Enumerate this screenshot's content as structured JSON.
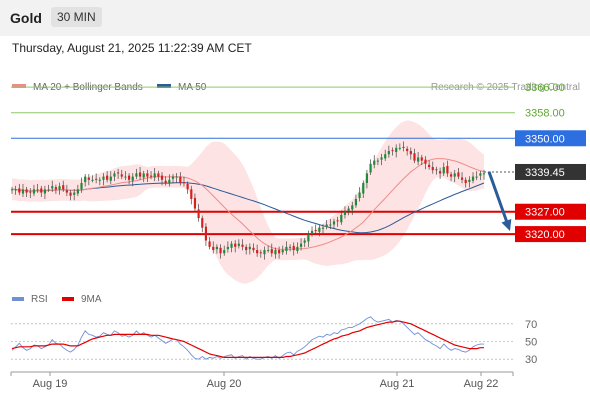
{
  "header": {
    "instrument": "Gold",
    "timeframe": "30 MIN"
  },
  "timestamp": "Thursday, August 21, 2025 11:22:39 AM CET",
  "chart_data": {
    "type": "candlestick",
    "legend": [
      {
        "label": "MA 20 + Bollinger Bands",
        "color": "#f08a8a"
      },
      {
        "label": "MA 50",
        "color": "#2a5b9a"
      }
    ],
    "credit": "Research © 2025 Trading Central",
    "x_ticks": [
      "Aug 19",
      "Aug 20",
      "Aug 21",
      "Aug 22"
    ],
    "price_axis": {
      "min": 3305,
      "max": 3372
    },
    "levels": [
      {
        "value": 3366,
        "label": "3366.00",
        "color": "#8dc96a",
        "tag_style": "text"
      },
      {
        "value": 3358,
        "label": "3358.00",
        "color": "#8dc96a",
        "tag_style": "text"
      },
      {
        "value": 3350,
        "label": "3350.00",
        "color": "#2d6ee0",
        "tag_style": "box"
      },
      {
        "value": 3327,
        "label": "3327.00",
        "color": "#e00000",
        "tag_style": "box"
      },
      {
        "value": 3320,
        "label": "3320.00",
        "color": "#e00000",
        "tag_style": "box"
      }
    ],
    "last_price": {
      "value": 3339.45,
      "label": "3339.45",
      "color": "#333333"
    },
    "forecast_arrow": {
      "from": 3339.5,
      "to": 3321.5,
      "color": "#2a5b9a"
    },
    "price_close": [
      3334,
      3334,
      3333,
      3334,
      3333,
      3333,
      3334,
      3334,
      3333,
      3334,
      3334,
      3335,
      3334,
      3335,
      3334,
      3333,
      3332,
      3333,
      3334,
      3336,
      3338,
      3337,
      3337,
      3337,
      3337,
      3338,
      3337,
      3338,
      3339,
      3339,
      3338,
      3338,
      3337,
      3338,
      3339,
      3338,
      3339,
      3338,
      3338,
      3339,
      3338,
      3337,
      3336,
      3337,
      3338,
      3338,
      3336,
      3336,
      3334,
      3331,
      3328,
      3325,
      3322,
      3318,
      3316,
      3315,
      3316,
      3314,
      3315,
      3316,
      3317,
      3316,
      3317,
      3316,
      3315,
      3316,
      3315,
      3314,
      3314,
      3315,
      3315,
      3314,
      3315,
      3314,
      3315,
      3316,
      3316,
      3315,
      3316,
      3317,
      3318,
      3320,
      3321,
      3321,
      3322,
      3322,
      3323,
      3323,
      3324,
      3324,
      3326,
      3327,
      3328,
      3329,
      3331,
      3333,
      3336,
      3339,
      3342,
      3343,
      3343,
      3344,
      3345,
      3346,
      3346,
      3347,
      3347,
      3347,
      3346,
      3345,
      3343,
      3344,
      3343,
      3342,
      3341,
      3340,
      3340,
      3339,
      3341,
      3339,
      3338,
      3339,
      3338,
      3337,
      3336,
      3337,
      3338,
      3338,
      3339,
      3339
    ],
    "rsi_axis": {
      "ticks": [
        70,
        50,
        30
      ],
      "min": 20,
      "max": 80
    },
    "rsi_series": [
      {
        "name": "RSI",
        "color": "#6f8fd6",
        "values": [
          40,
          44,
          48,
          43,
          40,
          42,
          46,
          45,
          42,
          44,
          46,
          52,
          48,
          47,
          43,
          40,
          38,
          41,
          46,
          55,
          62,
          58,
          57,
          55,
          56,
          60,
          58,
          57,
          62,
          60,
          56,
          57,
          55,
          57,
          62,
          58,
          60,
          57,
          55,
          57,
          54,
          51,
          48,
          50,
          53,
          52,
          47,
          44,
          40,
          35,
          31,
          30,
          33,
          30,
          32,
          31,
          33,
          31,
          33,
          34,
          35,
          31,
          33,
          34,
          30,
          33,
          31,
          30,
          30,
          32,
          33,
          31,
          34,
          31,
          34,
          37,
          38,
          35,
          39,
          41,
          44,
          48,
          52,
          54,
          56,
          55,
          58,
          57,
          60,
          59,
          63,
          64,
          66,
          66,
          68,
          70,
          73,
          76,
          78,
          74,
          72,
          73,
          74,
          75,
          72,
          74,
          73,
          70,
          66,
          62,
          58,
          60,
          56,
          52,
          50,
          47,
          45,
          42,
          47,
          43,
          40,
          42,
          41,
          39,
          38,
          40,
          44,
          46,
          47,
          47
        ]
      },
      {
        "name": "9MA",
        "color": "#e00000",
        "values": [
          42,
          43,
          44,
          44,
          44,
          44,
          45,
          45,
          45,
          45,
          46,
          47,
          47,
          47,
          47,
          46,
          45,
          45,
          45,
          47,
          49,
          51,
          53,
          54,
          55,
          56,
          57,
          57,
          58,
          58,
          58,
          58,
          58,
          58,
          58,
          58,
          58,
          58,
          57,
          57,
          57,
          56,
          55,
          54,
          53,
          52,
          51,
          50,
          48,
          46,
          44,
          42,
          40,
          38,
          36,
          35,
          34,
          33,
          32,
          32,
          32,
          32,
          32,
          32,
          32,
          32,
          32,
          32,
          32,
          32,
          32,
          32,
          32,
          32,
          32,
          33,
          33,
          34,
          35,
          36,
          37,
          39,
          41,
          43,
          45,
          47,
          49,
          51,
          53,
          54,
          56,
          57,
          58,
          60,
          61,
          62,
          64,
          66,
          67,
          68,
          69,
          70,
          71,
          72,
          72,
          73,
          73,
          72,
          71,
          70,
          68,
          66,
          64,
          62,
          60,
          58,
          56,
          54,
          52,
          50,
          48,
          46,
          45,
          44,
          43,
          42,
          42,
          42,
          43,
          43
        ]
      }
    ]
  }
}
